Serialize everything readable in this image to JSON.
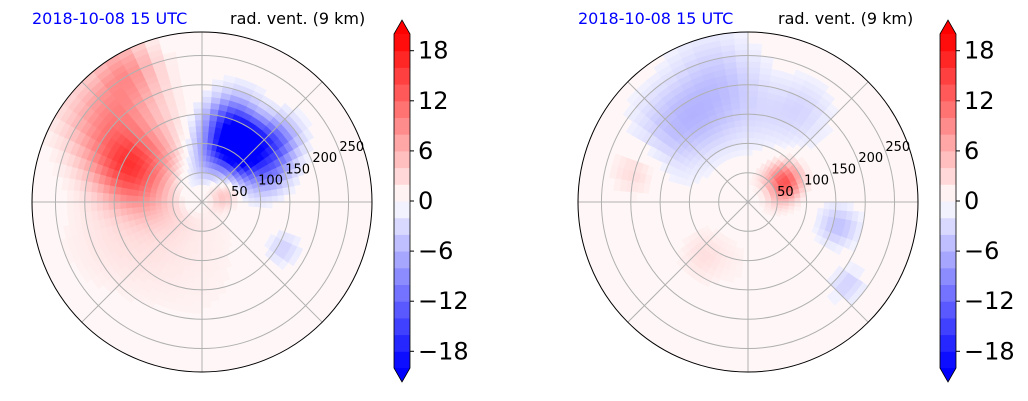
{
  "chart_data": [
    {
      "type": "heatmap",
      "projection": "polar",
      "date_label": "2018-10-08 15 UTC",
      "title": "rad. vent. (9 km)",
      "radial_ticks": [
        "50",
        "100",
        "150",
        "200",
        "250"
      ],
      "radial_values": [
        50,
        100,
        150,
        200,
        250
      ],
      "rlim": [
        0,
        290
      ],
      "grid": true,
      "colorbar": {
        "ticks": [
          "18",
          "12",
          "6",
          "0",
          "−6",
          "−12",
          "−18"
        ],
        "values": [
          18,
          12,
          6,
          0,
          -6,
          -12,
          -18
        ],
        "vlim": [
          -20,
          20
        ],
        "extend": "both",
        "colormap": "bwr"
      },
      "features": [
        {
          "angle": 140,
          "r": 200,
          "value": 9,
          "spread": 60
        },
        {
          "angle": 155,
          "r": 130,
          "value": 11,
          "spread": 45
        },
        {
          "angle": 120,
          "r": 260,
          "value": 7,
          "spread": 40
        },
        {
          "angle": 70,
          "r": 140,
          "value": -16,
          "spread": 35
        },
        {
          "angle": 55,
          "r": 110,
          "value": -19,
          "spread": 28
        },
        {
          "angle": 40,
          "r": 160,
          "value": -12,
          "spread": 30
        },
        {
          "angle": 25,
          "r": 120,
          "value": -8,
          "spread": 30
        },
        {
          "angle": 85,
          "r": 60,
          "value": -5,
          "spread": 35
        },
        {
          "angle": 20,
          "r": 40,
          "value": 6,
          "spread": 18
        },
        {
          "angle": 330,
          "r": 160,
          "value": -4,
          "spread": 20
        },
        {
          "angle": 200,
          "r": 150,
          "value": 2,
          "spread": 80
        },
        {
          "angle": 270,
          "r": 150,
          "value": 1,
          "spread": 120
        }
      ]
    },
    {
      "type": "heatmap",
      "projection": "polar",
      "date_label": "2018-10-08 15 UTC",
      "title": "rad. vent. (9 km)",
      "radial_ticks": [
        "50",
        "100",
        "150",
        "200",
        "250"
      ],
      "radial_values": [
        50,
        100,
        150,
        200,
        250
      ],
      "rlim": [
        0,
        290
      ],
      "grid": true,
      "colorbar": {
        "ticks": [
          "18",
          "12",
          "6",
          "0",
          "−6",
          "−12",
          "−18"
        ],
        "values": [
          18,
          12,
          6,
          0,
          -6,
          -12,
          -18
        ],
        "vlim": [
          -20,
          20
        ],
        "extend": "both",
        "colormap": "bwr"
      },
      "features": [
        {
          "angle": 105,
          "r": 200,
          "value": -5,
          "spread": 60
        },
        {
          "angle": 135,
          "r": 180,
          "value": -4,
          "spread": 50
        },
        {
          "angle": 60,
          "r": 180,
          "value": -3,
          "spread": 40
        },
        {
          "angle": 35,
          "r": 75,
          "value": 9,
          "spread": 22
        },
        {
          "angle": 20,
          "r": 70,
          "value": 6,
          "spread": 20
        },
        {
          "angle": 165,
          "r": 200,
          "value": 3,
          "spread": 30
        },
        {
          "angle": 345,
          "r": 160,
          "value": -5,
          "spread": 25
        },
        {
          "angle": 320,
          "r": 220,
          "value": -4,
          "spread": 20
        },
        {
          "angle": 230,
          "r": 120,
          "value": 2,
          "spread": 30
        },
        {
          "angle": 280,
          "r": 150,
          "value": 1,
          "spread": 90
        }
      ]
    }
  ],
  "colors": {
    "negative_max": "#0000ff",
    "positive_max": "#ff0000",
    "neutral": "#ffffff",
    "date_text": "#0000ff",
    "grid": "#b0b0b0"
  }
}
